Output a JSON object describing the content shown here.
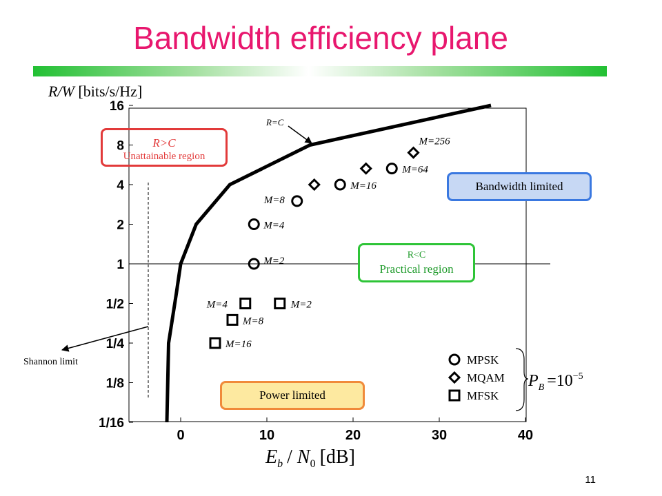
{
  "slide": {
    "title": "Bandwidth efficiency plane",
    "page_number": "11"
  },
  "regions": {
    "unattainable_condition": "R>C",
    "unattainable_label": "Unattainable region",
    "practical_condition": "R<C",
    "practical_label": "Practical region",
    "bandwidth_limited": "Bandwidth limited",
    "power_limited": "Power limited"
  },
  "annotations": {
    "capacity_curve": "R=C",
    "shannon_limit": "Shannon limit"
  },
  "legend": {
    "items": [
      {
        "marker": "circle",
        "label": "MPSK"
      },
      {
        "marker": "diamond",
        "label": "MQAM"
      },
      {
        "marker": "square",
        "label": "MFSK"
      }
    ],
    "condition": "P_B = 10^-5"
  },
  "colors": {
    "title": "#e8176e",
    "unattainable": "#e23a3a",
    "bandwidth_box_border": "#3a78e0",
    "bandwidth_box_fill": "#c7d8f4",
    "practical": "#2ec437",
    "power_box_border": "#f08a3a",
    "power_box_fill": "#fde9a0"
  },
  "chart_data": {
    "type": "scatter",
    "xlabel": "Eb / N0 [dB]",
    "ylabel": "R/W [bits/s/Hz]",
    "xlim": [
      -5,
      40
    ],
    "ylim": [
      0.0625,
      16
    ],
    "y_scale": "log2",
    "x_ticks": [
      "0",
      "10",
      "20",
      "30",
      "40"
    ],
    "x_tick_values": [
      0,
      10,
      20,
      30,
      40
    ],
    "y_ticks": [
      "1/16",
      "1/8",
      "1/4",
      "1/2",
      "1",
      "2",
      "4",
      "8",
      "16"
    ],
    "y_tick_values": [
      0.0625,
      0.125,
      0.25,
      0.5,
      1,
      2,
      4,
      8,
      16
    ],
    "grid": false,
    "legend_position": "bottom-right",
    "capacity_curve": {
      "name": "R=C",
      "points": [
        [
          -1.6,
          0.0625
        ],
        [
          -1.4,
          0.25
        ],
        [
          -0.5,
          0.6
        ],
        [
          0,
          1
        ],
        [
          1.8,
          2
        ],
        [
          5.7,
          4
        ],
        [
          15,
          8
        ],
        [
          36,
          16
        ]
      ]
    },
    "reference_line": {
      "y": 1
    },
    "shannon_limit_line": {
      "x": -1.6
    },
    "series": [
      {
        "name": "MPSK",
        "marker": "circle",
        "points": [
          {
            "x": 8.5,
            "y": 1,
            "label": "M=2"
          },
          {
            "x": 8.5,
            "y": 2,
            "label": "M=4"
          },
          {
            "x": 13.5,
            "y": 3,
            "label": "M=8"
          },
          {
            "x": 18.5,
            "y": 4,
            "label": "M=16"
          },
          {
            "x": 24.5,
            "y": 5.3,
            "label": "M=64"
          }
        ]
      },
      {
        "name": "MQAM",
        "marker": "diamond",
        "points": [
          {
            "x": 15.5,
            "y": 4,
            "label": ""
          },
          {
            "x": 21.5,
            "y": 5.3,
            "label": ""
          },
          {
            "x": 27,
            "y": 7,
            "label": "M=256"
          }
        ]
      },
      {
        "name": "MFSK",
        "marker": "square",
        "points": [
          {
            "x": 11.5,
            "y": 0.5,
            "label": "M=2"
          },
          {
            "x": 7.5,
            "y": 0.5,
            "label": "M=4"
          },
          {
            "x": 6,
            "y": 0.375,
            "label": "M=8"
          },
          {
            "x": 4,
            "y": 0.25,
            "label": "M=16"
          }
        ]
      }
    ]
  }
}
